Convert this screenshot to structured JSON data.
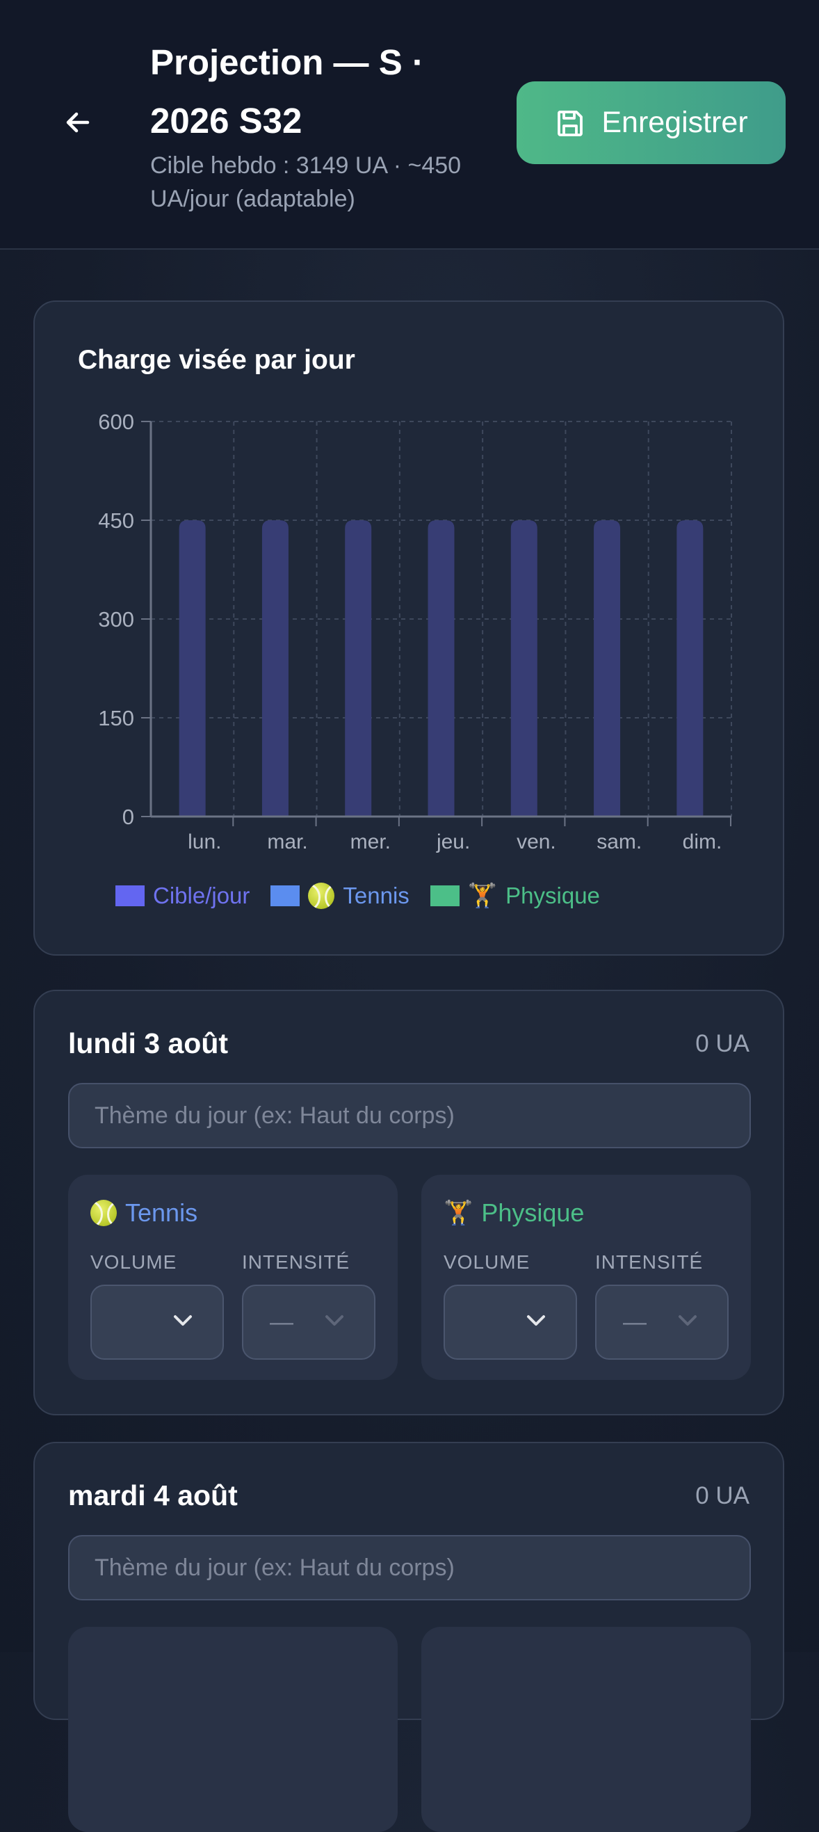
{
  "header": {
    "title": "Projection — S · 2026 S32",
    "subtitle": "Cible hebdo : 3149 UA · ~450 UA/jour (adaptable)",
    "save_label": "Enregistrer"
  },
  "chart": {
    "title": "Charge visée par jour",
    "legend": {
      "target": "Cible/jour",
      "tennis": "Tennis",
      "physique": "Physique"
    }
  },
  "colors": {
    "bar": "#373d74",
    "target": "#6366f1",
    "tennis": "#5b8def",
    "physique": "#4cbf88",
    "save": "#4fb888"
  },
  "chart_data": {
    "type": "bar",
    "title": "Charge visée par jour",
    "categories": [
      "lun.",
      "mar.",
      "mer.",
      "jeu.",
      "ven.",
      "sam.",
      "dim."
    ],
    "series": [
      {
        "name": "Cible/jour",
        "values": [
          450,
          450,
          450,
          450,
          450,
          450,
          450
        ]
      },
      {
        "name": "Tennis",
        "values": [
          0,
          0,
          0,
          0,
          0,
          0,
          0
        ]
      },
      {
        "name": "Physique",
        "values": [
          0,
          0,
          0,
          0,
          0,
          0,
          0
        ]
      }
    ],
    "yticks": [
      0,
      150,
      300,
      450,
      600
    ],
    "ylim": [
      0,
      600
    ],
    "grid": true,
    "legend_position": "bottom"
  },
  "days": [
    {
      "title": "lundi 3 août",
      "ua": "0 UA",
      "theme_placeholder": "Thème du jour (ex: Haut du corps)",
      "tennis": {
        "label": "Tennis",
        "volume_label": "VOLUME",
        "intensity_label": "INTENSITÉ",
        "volume_value": "",
        "intensity_value": "—"
      },
      "physique": {
        "label": "Physique",
        "volume_label": "VOLUME",
        "intensity_label": "INTENSITÉ",
        "volume_value": "",
        "intensity_value": "—"
      }
    },
    {
      "title": "mardi 4 août",
      "ua": "0 UA",
      "theme_placeholder": "Thème du jour (ex: Haut du corps)"
    }
  ]
}
